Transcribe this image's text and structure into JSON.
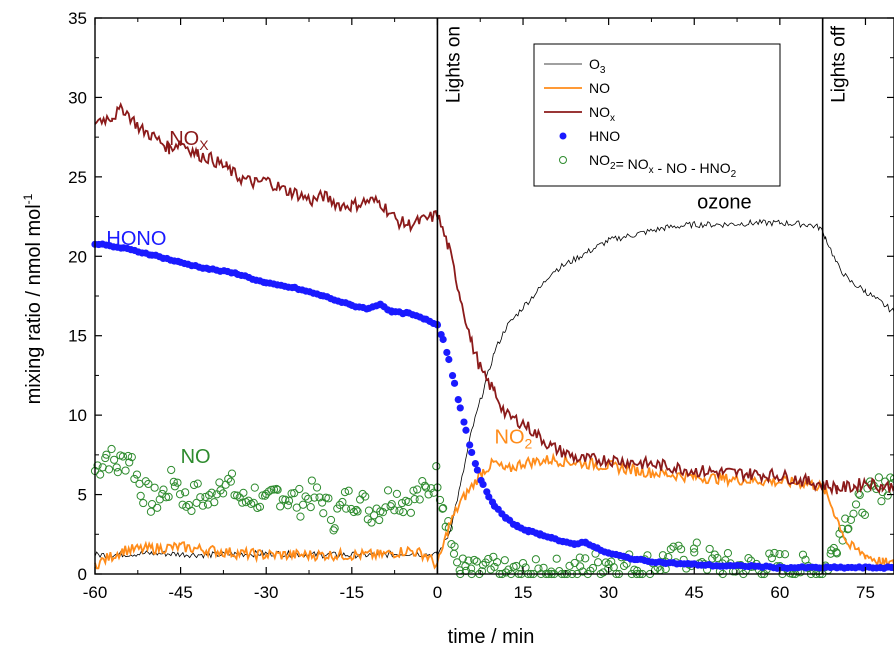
{
  "chart_data": {
    "type": "line",
    "xlabel": "time / min",
    "ylabel_main": "mixing ratio / nmol mol",
    "ylabel_sup": "-1",
    "xlim": [
      -60,
      80
    ],
    "ylim": [
      0,
      35
    ],
    "xticks": [
      -60,
      -45,
      -30,
      -15,
      0,
      15,
      30,
      45,
      60,
      75
    ],
    "yticks": [
      0,
      5,
      10,
      15,
      20,
      25,
      30,
      35
    ],
    "grid": false,
    "legend_position": "top-center",
    "legend": [
      {
        "main": "O",
        "sub": "3",
        "rest": "",
        "rest_sub": "",
        "tail": "",
        "marker": "line",
        "color": "#000000"
      },
      {
        "main": "NO",
        "sub": "",
        "rest": "",
        "rest_sub": "",
        "tail": "",
        "marker": "line",
        "color": "#ff8c1a"
      },
      {
        "main": "NO",
        "sub": "x",
        "rest": "",
        "rest_sub": "",
        "tail": "",
        "marker": "line",
        "color": "#8b1a1a"
      },
      {
        "main": "HNO",
        "sub": "",
        "rest": "",
        "rest_sub": "",
        "tail": "",
        "marker": "dot",
        "color": "#1a1aff"
      },
      {
        "main": "NO",
        "sub": "2",
        "rest": "= NO",
        "rest_sub": "x",
        "tail": " - NO - HNO",
        "tail_sub": "2",
        "marker": "circle",
        "color": "#2e8b2e"
      }
    ],
    "vlines": [
      {
        "x": 0,
        "label": "Lights on"
      },
      {
        "x": 67.5,
        "label": "Lights off"
      }
    ],
    "annotations": [
      {
        "text": "NO",
        "sub": "X",
        "x": -47,
        "y": 27,
        "color": "#8b1a1a"
      },
      {
        "text": "HONO",
        "sub": "",
        "x": -58,
        "y": 20.7,
        "color": "#1a1aff"
      },
      {
        "text": "NO",
        "sub": "",
        "x": -45,
        "y": 7,
        "color": "#2e8b2e"
      },
      {
        "text": "NO",
        "sub": "2",
        "x": 10,
        "y": 8.2,
        "color": "#ff8c1a"
      },
      {
        "text": "ozone",
        "sub": "",
        "x": 45.5,
        "y": 23,
        "color": "#000000"
      }
    ],
    "series": [
      {
        "name": "NOx",
        "color": "#8b1a1a",
        "x": [
          -60,
          -57,
          -55,
          -52,
          -50,
          -47,
          -45,
          -42,
          -40,
          -37,
          -35,
          -32,
          -30,
          -27,
          -25,
          -22,
          -20,
          -17,
          -15,
          -12,
          -10,
          -7,
          -5,
          -3,
          0,
          2,
          4,
          6,
          8,
          10,
          12,
          15,
          20,
          25,
          30,
          35,
          40,
          45,
          50,
          55,
          60,
          65,
          67,
          70,
          73,
          75,
          78,
          80
        ],
        "y": [
          28.5,
          28.8,
          29.3,
          28,
          27.6,
          26.8,
          27.2,
          26.4,
          26.2,
          25.6,
          25,
          24.6,
          24.8,
          24.2,
          24,
          23.5,
          23.8,
          23.2,
          23.2,
          23.5,
          23.4,
          22.2,
          22,
          22.2,
          22.6,
          20.5,
          17.5,
          14.5,
          12.5,
          11.5,
          10,
          9.5,
          8,
          7.2,
          7.2,
          7,
          6.8,
          6.5,
          6.4,
          6.3,
          6.2,
          5.8,
          5.7,
          5.4,
          5.5,
          5.8,
          5.5,
          5.5
        ]
      },
      {
        "name": "O3",
        "color": "#000000",
        "x": [
          -60,
          -50,
          -40,
          -30,
          -20,
          -10,
          -5,
          0,
          2,
          4,
          6,
          8,
          10,
          12,
          15,
          18,
          20,
          25,
          30,
          35,
          40,
          45,
          50,
          55,
          60,
          65,
          67,
          68,
          70,
          72,
          75,
          78,
          80
        ],
        "y": [
          1.2,
          1.3,
          1.2,
          1.3,
          1.2,
          1.2,
          1.3,
          1.2,
          2.5,
          5.5,
          9,
          11.5,
          14,
          15.5,
          16.8,
          18,
          19,
          20,
          21,
          21.4,
          21.8,
          22,
          22,
          22.1,
          22.1,
          22,
          21.8,
          21.2,
          19.5,
          18.5,
          17.8,
          17,
          16.5
        ]
      },
      {
        "name": "NO",
        "color": "#ff8c1a",
        "x": [
          -60,
          -55,
          -50,
          -45,
          -40,
          -35,
          -30,
          -25,
          -20,
          -15,
          -10,
          -5,
          -2,
          0,
          2,
          4,
          6,
          8,
          10,
          12,
          15,
          20,
          25,
          30,
          35,
          40,
          45,
          50,
          55,
          60,
          65,
          67,
          68,
          70,
          72,
          75,
          78,
          80
        ],
        "y": [
          0.6,
          1.5,
          1.6,
          1.7,
          1.5,
          1.3,
          1.2,
          1.2,
          1.2,
          1.2,
          1.2,
          1.5,
          1.2,
          0.5,
          3,
          4.5,
          5.5,
          6.5,
          7,
          6.5,
          7,
          7.2,
          7,
          6.8,
          6.5,
          6.3,
          6.1,
          6,
          5.9,
          5.8,
          5.7,
          5.5,
          5.2,
          3.5,
          1.8,
          1.2,
          0.7,
          0.6
        ]
      },
      {
        "name": "HONO",
        "color": "#1a1aff",
        "x": [
          -60,
          -55,
          -50,
          -45,
          -40,
          -35,
          -30,
          -25,
          -20,
          -15,
          -12,
          -10,
          -8,
          -5,
          -2,
          0,
          1,
          2,
          3,
          4,
          5,
          6,
          7,
          8,
          9,
          10,
          12,
          14,
          16,
          18,
          20,
          22,
          24,
          26,
          28,
          30,
          35,
          40,
          45,
          50,
          55,
          60,
          65,
          70,
          75,
          80
        ],
        "y": [
          20.8,
          20.5,
          20.1,
          19.6,
          19.2,
          18.9,
          18.3,
          18,
          17.5,
          16.9,
          16.7,
          17,
          16.5,
          16.4,
          16,
          15.7,
          14.8,
          13.5,
          12,
          10.5,
          9,
          7.7,
          6.5,
          5.6,
          4.9,
          4.3,
          3.5,
          3,
          2.7,
          2.5,
          2.3,
          2,
          1.9,
          2,
          1.6,
          1.3,
          0.9,
          0.7,
          0.6,
          0.5,
          0.5,
          0.4,
          0.4,
          0.4,
          0.4,
          0.4
        ]
      },
      {
        "name": "NO2 = NOx - NO - HNO2",
        "color": "#2e8b2e",
        "x": [
          -60,
          -58,
          -56,
          -54,
          -52,
          -50,
          -48,
          -46,
          -44,
          -42,
          -40,
          -38,
          -36,
          -34,
          -32,
          -30,
          -28,
          -26,
          -24,
          -22,
          -20,
          -18,
          -16,
          -14,
          -12,
          -10,
          -8,
          -6,
          -4,
          -2,
          0,
          1,
          2,
          3,
          4,
          5,
          6,
          8,
          10,
          12,
          15,
          20,
          25,
          30,
          35,
          40,
          45,
          50,
          55,
          60,
          65,
          67,
          68,
          69,
          70,
          71,
          72,
          74,
          76,
          78,
          80
        ],
        "y": [
          6.5,
          7.5,
          6.8,
          7.5,
          5.5,
          4.5,
          5,
          6,
          4.5,
          5,
          4.5,
          6,
          5.5,
          4.5,
          5,
          4.2,
          5.2,
          4.8,
          4.5,
          5,
          4.5,
          3.5,
          4.6,
          4.8,
          4,
          4.2,
          5,
          4.6,
          4.8,
          5.2,
          6.2,
          4.5,
          3,
          1,
          0.3,
          0.2,
          0,
          0.2,
          0.2,
          0,
          0,
          0.1,
          0.3,
          0.8,
          0.4,
          0.8,
          1.2,
          0.5,
          0.4,
          0.6,
          0.3,
          0.2,
          0.4,
          1.2,
          2.2,
          3,
          3.6,
          4.3,
          5,
          5.5,
          6
        ]
      }
    ]
  }
}
